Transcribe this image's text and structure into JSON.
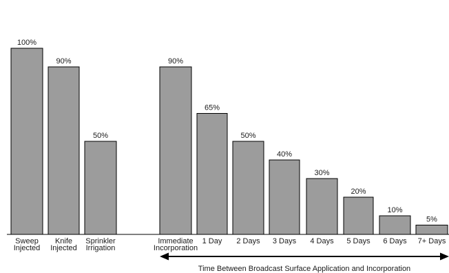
{
  "chart_data": {
    "type": "bar",
    "categories": [
      [
        "Sweep",
        "Injected"
      ],
      [
        "Knife",
        "Injected"
      ],
      [
        "Sprinkler",
        "Irrigation"
      ],
      [
        "Immediate",
        "Incorporation"
      ],
      [
        "1 Day"
      ],
      [
        "2 Days"
      ],
      [
        "3 Days"
      ],
      [
        "4 Days"
      ],
      [
        "5 Days"
      ],
      [
        "6 Days"
      ],
      [
        "7+ Days"
      ]
    ],
    "values": [
      100,
      90,
      50,
      90,
      65,
      50,
      40,
      30,
      20,
      10,
      5
    ],
    "value_labels": [
      "100%",
      "90%",
      "50%",
      "90%",
      "65%",
      "50%",
      "40%",
      "30%",
      "20%",
      "10%",
      "5%"
    ],
    "ylim": [
      0,
      100
    ],
    "grid": false,
    "bar_color": "#9c9c9c",
    "xlabel": "Time Between Broadcast Surface Application and Incorporation"
  }
}
